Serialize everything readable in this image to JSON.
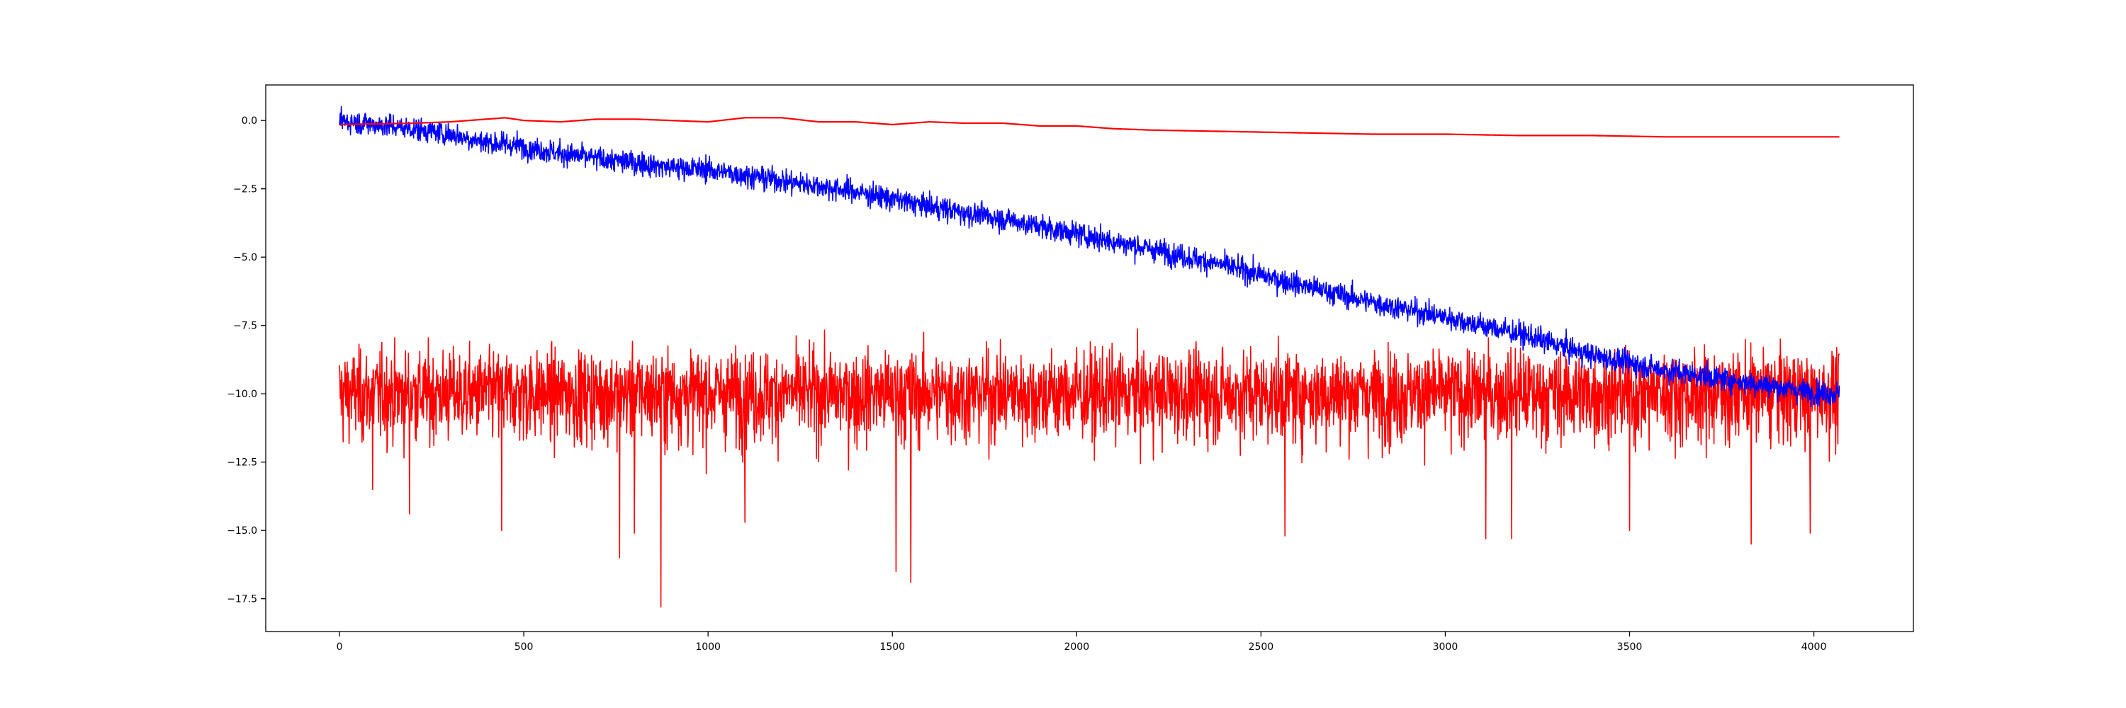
{
  "chart_data": {
    "type": "line",
    "title": "",
    "xlabel": "",
    "ylabel": "",
    "xlim": [
      -200,
      4270
    ],
    "ylim": [
      -18.7,
      1.3
    ],
    "xticks": [
      0,
      500,
      1000,
      1500,
      2000,
      2500,
      3000,
      3500,
      4000
    ],
    "xtick_labels": [
      "0",
      "500",
      "1000",
      "1500",
      "2000",
      "2500",
      "3000",
      "3500",
      "4000"
    ],
    "yticks": [
      0.0,
      -2.5,
      -5.0,
      -7.5,
      -10.0,
      -12.5,
      -15.0,
      -17.5
    ],
    "ytick_labels": [
      "0.0",
      "−2.5",
      "−5.0",
      "−7.5",
      "−10.0",
      "−12.5",
      "−15.0",
      "−17.5"
    ],
    "grid": false,
    "legend": "none",
    "n_points": 4070,
    "series": [
      {
        "color": "#0000ff",
        "kind": "noisy",
        "x": [
          0,
          100,
          200,
          300,
          400,
          500,
          600,
          700,
          800,
          900,
          1000,
          1200,
          1400,
          1600,
          1800,
          2000,
          2200,
          2400,
          2600,
          2800,
          3000,
          3200,
          3400,
          3600,
          3800,
          4000,
          4069
        ],
        "y": [
          0.0,
          -0.15,
          -0.3,
          -0.5,
          -0.8,
          -0.95,
          -1.2,
          -1.4,
          -1.55,
          -1.7,
          -1.8,
          -2.2,
          -2.6,
          -3.15,
          -3.6,
          -4.15,
          -4.7,
          -5.3,
          -6.0,
          -6.65,
          -7.2,
          -7.8,
          -8.6,
          -9.15,
          -9.55,
          -9.95,
          -10.0
        ],
        "noise_sd": 0.3
      },
      {
        "color": "#ff0000",
        "kind": "smooth",
        "x": [
          0,
          200,
          300,
          400,
          450,
          500,
          600,
          700,
          800,
          900,
          1000,
          1100,
          1200,
          1300,
          1400,
          1500,
          1600,
          1700,
          1800,
          1900,
          2000,
          2100,
          2200,
          2400,
          2600,
          2800,
          3000,
          3200,
          3400,
          3600,
          3800,
          4069
        ],
        "y": [
          -0.15,
          -0.1,
          -0.05,
          0.05,
          0.1,
          0.0,
          -0.05,
          0.05,
          0.05,
          0.0,
          -0.05,
          0.1,
          0.1,
          -0.05,
          -0.05,
          -0.15,
          -0.05,
          -0.1,
          -0.1,
          -0.2,
          -0.2,
          -0.3,
          -0.35,
          -0.4,
          -0.45,
          -0.5,
          -0.5,
          -0.55,
          -0.55,
          -0.6,
          -0.6,
          -0.6
        ]
      },
      {
        "color": "#ff0000",
        "kind": "noisy",
        "x": [
          0,
          4069
        ],
        "y": [
          -9.9,
          -9.9
        ],
        "noise_sd": 1.0,
        "spikes": [
          {
            "x": 90,
            "y": -13.5
          },
          {
            "x": 190,
            "y": -14.4
          },
          {
            "x": 440,
            "y": -15.0
          },
          {
            "x": 760,
            "y": -16.0
          },
          {
            "x": 800,
            "y": -15.1
          },
          {
            "x": 872,
            "y": -17.8
          },
          {
            "x": 1100,
            "y": -14.7
          },
          {
            "x": 1510,
            "y": -16.5
          },
          {
            "x": 1550,
            "y": -16.9
          },
          {
            "x": 2565,
            "y": -15.2
          },
          {
            "x": 3110,
            "y": -15.3
          },
          {
            "x": 3180,
            "y": -15.3
          },
          {
            "x": 3500,
            "y": -15.0
          },
          {
            "x": 3830,
            "y": -15.5
          },
          {
            "x": 3990,
            "y": -15.1
          }
        ]
      }
    ]
  }
}
